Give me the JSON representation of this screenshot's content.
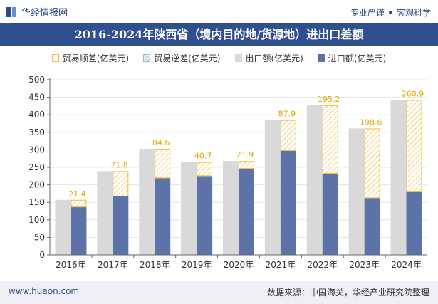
{
  "header": {
    "brand": "华经情报网",
    "tagline_left": "专业严谨",
    "tagline_right": "客观科学"
  },
  "title": "2016-2024年陕西省（境内目的地/货源地）进出口差额",
  "legend": {
    "surplus": "贸易顺差(亿美元)",
    "deficit": "贸易逆差(亿美元)",
    "export": "出口额(亿美元)",
    "import": "进口额(亿美元)"
  },
  "colors": {
    "export": "#d9d9d9",
    "import": "#5d72a6",
    "surplus_border": "#f0c040",
    "label": "#e0a800",
    "title_bg": "#2f4f8f"
  },
  "chart_data": {
    "type": "bar",
    "categories": [
      "2016年",
      "2017年",
      "2018年",
      "2019年",
      "2020年",
      "2021年",
      "2022年",
      "2023年",
      "2024年"
    ],
    "series": [
      {
        "name": "出口额(亿美元)",
        "values": [
          157,
          239,
          303,
          265,
          268,
          385,
          427,
          361,
          442
        ]
      },
      {
        "name": "进口额(亿美元)",
        "values": [
          136,
          167,
          219,
          225,
          246,
          297,
          232,
          162,
          181
        ]
      },
      {
        "name": "贸易顺差(亿美元)",
        "values": [
          21.4,
          71.8,
          84.6,
          40.7,
          21.9,
          87.9,
          195.2,
          198.6,
          260.9
        ]
      }
    ],
    "surplus_labels": [
      "21.4",
      "71.8",
      "84.6",
      "40.7",
      "21.9",
      "87.9",
      "195.2",
      "198.6",
      "260.9"
    ],
    "y_ticks": [
      "0",
      "50",
      "100",
      "150",
      "200",
      "250",
      "300",
      "350",
      "400",
      "450",
      "500"
    ],
    "ylim": [
      0,
      500
    ],
    "grid": true,
    "legend_position": "top"
  },
  "footer": {
    "website": "www.huaon.com",
    "source": "数据来源：中国海关，华经产业研究院整理"
  }
}
